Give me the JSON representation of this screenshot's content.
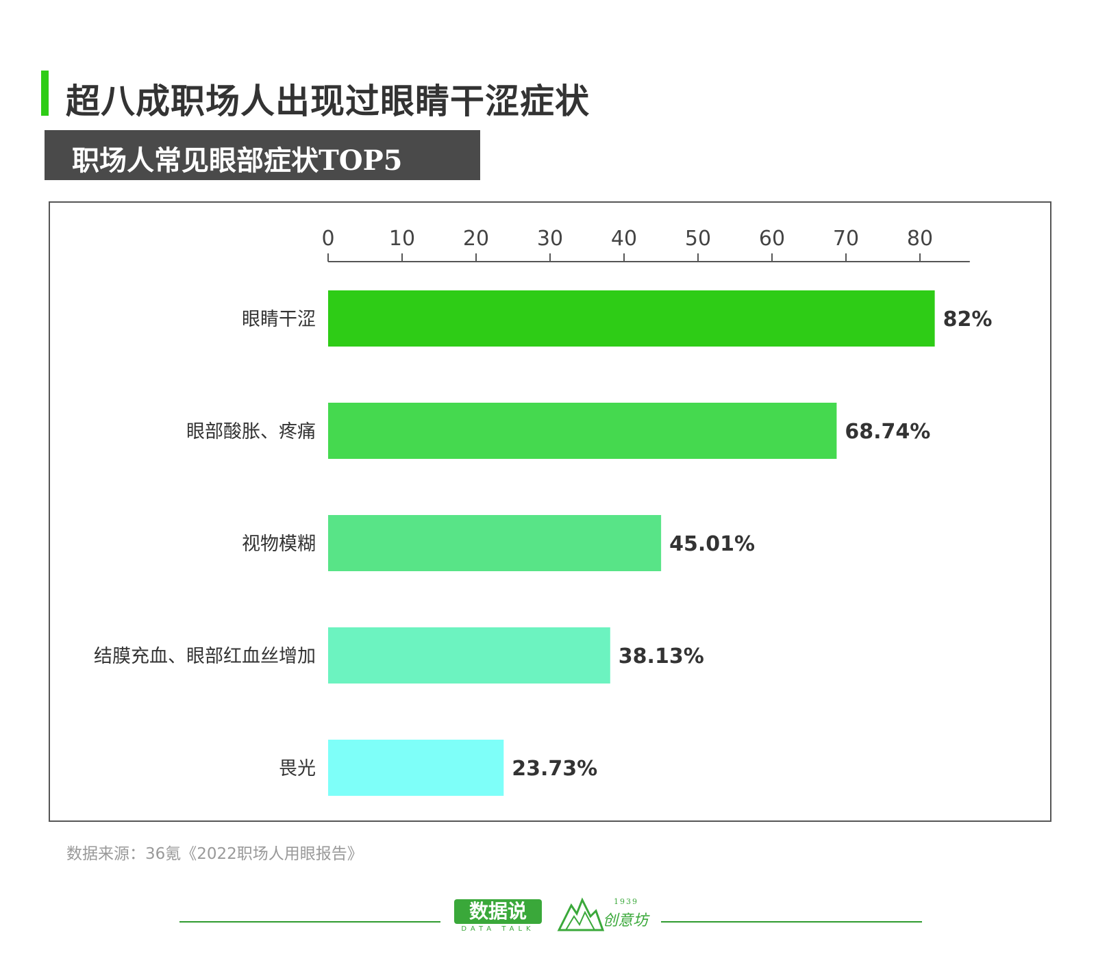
{
  "header": {
    "title": "超八成职场人出现过眼睛干涩症状",
    "subtitle": "职场人常见眼部症状TOP5"
  },
  "colors": {
    "accent": "#2ecc16",
    "subtitle_bg": "#4a4a4a",
    "footer_green": "#3aa83a"
  },
  "chart_data": {
    "type": "bar",
    "orientation": "horizontal",
    "title": "职场人常见眼部症状TOP5",
    "xlabel": "",
    "ylabel": "",
    "xlim": [
      0,
      86
    ],
    "x_ticks": [
      "0",
      "10",
      "20",
      "30",
      "40",
      "50",
      "60",
      "70",
      "80"
    ],
    "x_axis_position": "top",
    "grid": false,
    "categories": [
      "眼睛干涩",
      "眼部酸胀、疼痛",
      "视物模糊",
      "结膜充血、眼部红血丝增加",
      "畏光"
    ],
    "values": [
      82,
      68.74,
      45.01,
      38.13,
      23.73
    ],
    "value_labels": [
      "82%",
      "68.74%",
      "45.01%",
      "38.13%",
      "23.73%"
    ],
    "bar_colors": [
      "#2ecc16",
      "#45d94f",
      "#58e487",
      "#6cf3c0",
      "#7efff9"
    ]
  },
  "footer": {
    "source": "数据来源：36氪《2022职场人用眼报告》",
    "logo_main": "数据说",
    "logo_sub": "DATA TALK",
    "logo2_year": "1939",
    "logo2_text": "创意坊"
  }
}
